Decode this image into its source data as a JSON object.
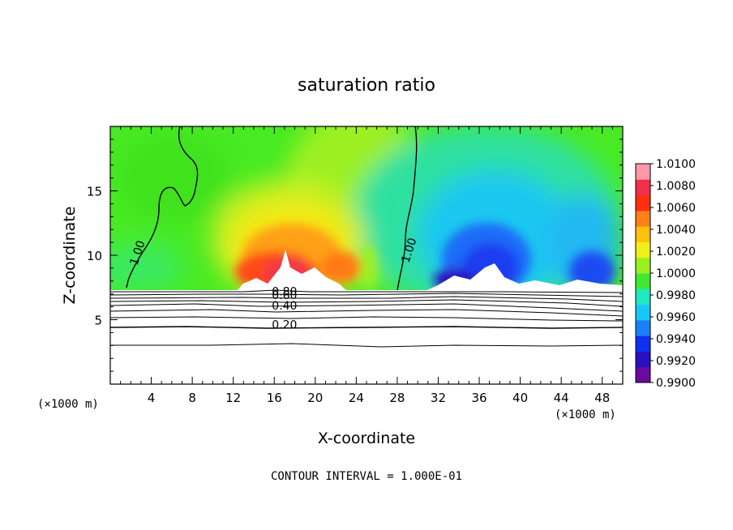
{
  "chart_data": {
    "type": "heatmap",
    "title": "saturation ratio",
    "xlabel": "X-coordinate",
    "ylabel": "Z-coordinate",
    "x_unit_label": "(×1000 m)",
    "x_unit_label_right": "(×1000 m)",
    "footer": "CONTOUR INTERVAL = 1.000E-01",
    "xlim": [
      0,
      50
    ],
    "ylim": [
      0,
      20
    ],
    "x_ticks": [
      4,
      8,
      12,
      16,
      20,
      24,
      28,
      32,
      36,
      40,
      44,
      48
    ],
    "y_ticks": [
      5,
      10,
      15
    ],
    "colorbar": {
      "min": 0.99,
      "max": 1.01,
      "tick_labels": [
        "1.0100",
        "1.0080",
        "1.0060",
        "1.0040",
        "1.0020",
        "1.0000",
        "0.9980",
        "0.9960",
        "0.9940",
        "0.9920",
        "0.9900"
      ],
      "colors": [
        "#6a0aa0",
        "#2a10c0",
        "#1030f0",
        "#1a80f8",
        "#18c8f8",
        "#20e8c0",
        "#40e830",
        "#9af020",
        "#eef018",
        "#ffc010",
        "#ff8018",
        "#ff3010",
        "#f03048",
        "#ff98a8"
      ]
    },
    "contour_labels": [
      {
        "text": "1.00",
        "x": 3.0,
        "z": 10.1
      },
      {
        "text": "1.00",
        "x": 29.5,
        "z": 10.3
      },
      {
        "text": "0.80",
        "x": 17.0,
        "z": 6.9
      },
      {
        "text": "0.60",
        "x": 17.0,
        "z": 6.6
      },
      {
        "text": "0.40",
        "x": 17.0,
        "z": 5.8
      },
      {
        "text": "0.20",
        "x": 17.0,
        "z": 4.3
      }
    ]
  }
}
